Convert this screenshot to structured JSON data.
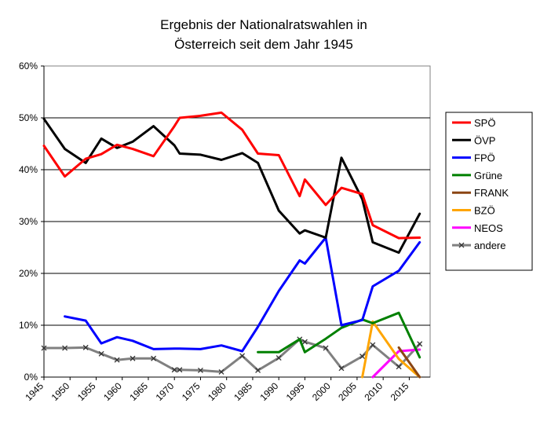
{
  "chart_data": {
    "type": "line",
    "title": [
      "Ergebnis der Nationalratswahlen in",
      "Österreich seit dem Jahr 1945"
    ],
    "xlabel": "",
    "ylabel": "",
    "xlim": [
      1945,
      2019
    ],
    "ylim": [
      0,
      60
    ],
    "x_ticks": [
      "1945",
      "1950",
      "1955",
      "1960",
      "1965",
      "1970",
      "1975",
      "1980",
      "1985",
      "1990",
      "1995",
      "2000",
      "2005",
      "2010",
      "2015"
    ],
    "y_ticks": [
      "0%",
      "10%",
      "20%",
      "30%",
      "40%",
      "50%",
      "60%"
    ],
    "grid": "horizontal",
    "legend_position": "right",
    "series": [
      {
        "name": "SPÖ",
        "color": "#ff0000",
        "markers": false,
        "x": [
          1945,
          1949,
          1953,
          1956,
          1959,
          1962,
          1966,
          1970,
          1971,
          1975,
          1979,
          1983,
          1986,
          1990,
          1994,
          1995,
          1999,
          2002,
          2006,
          2008,
          2013,
          2017
        ],
        "y": [
          44.6,
          38.7,
          42.1,
          43.0,
          44.8,
          44.0,
          42.6,
          48.4,
          50.0,
          50.4,
          51.0,
          47.7,
          43.1,
          42.8,
          34.9,
          38.1,
          33.2,
          36.5,
          35.3,
          29.3,
          26.8,
          26.9
        ]
      },
      {
        "name": "ÖVP",
        "color": "#000000",
        "markers": false,
        "x": [
          1945,
          1949,
          1953,
          1956,
          1959,
          1962,
          1966,
          1970,
          1971,
          1975,
          1979,
          1983,
          1986,
          1990,
          1994,
          1995,
          1999,
          2002,
          2006,
          2008,
          2013,
          2017
        ],
        "y": [
          49.8,
          44.0,
          41.3,
          46.0,
          44.2,
          45.4,
          48.4,
          44.7,
          43.1,
          42.9,
          41.9,
          43.2,
          41.3,
          32.1,
          27.7,
          28.3,
          26.9,
          42.3,
          34.3,
          26.0,
          24.0,
          31.5
        ]
      },
      {
        "name": "FPÖ",
        "color": "#0000ff",
        "markers": false,
        "x": [
          1949,
          1953,
          1956,
          1959,
          1962,
          1966,
          1970,
          1971,
          1975,
          1979,
          1983,
          1986,
          1990,
          1994,
          1995,
          1999,
          2002,
          2006,
          2008,
          2013,
          2017
        ],
        "y": [
          11.7,
          10.9,
          6.5,
          7.7,
          7.0,
          5.4,
          5.5,
          5.5,
          5.4,
          6.1,
          5.0,
          9.7,
          16.6,
          22.5,
          21.9,
          26.9,
          10.0,
          11.0,
          17.5,
          20.5,
          26.0
        ]
      },
      {
        "name": "Grüne",
        "color": "#008000",
        "markers": false,
        "x": [
          1986,
          1990,
          1994,
          1995,
          1999,
          2002,
          2006,
          2008,
          2013,
          2017
        ],
        "y": [
          4.8,
          4.8,
          7.3,
          4.8,
          7.4,
          9.5,
          11.1,
          10.4,
          12.4,
          3.8
        ]
      },
      {
        "name": "FRANK",
        "color": "#8b4513",
        "markers": false,
        "x": [
          2013,
          2017
        ],
        "y": [
          5.7,
          0.0
        ]
      },
      {
        "name": "BZÖ",
        "color": "#ffa500",
        "markers": false,
        "x": [
          2006,
          2008,
          2013,
          2017
        ],
        "y": [
          0.0,
          10.7,
          3.5,
          0.0
        ]
      },
      {
        "name": "NEOS",
        "color": "#ff00ff",
        "markers": false,
        "x": [
          2008,
          2013,
          2017
        ],
        "y": [
          0.0,
          5.0,
          5.3
        ]
      },
      {
        "name": "andere",
        "color": "#808080",
        "markers": true,
        "x": [
          1945,
          1949,
          1953,
          1956,
          1959,
          1962,
          1966,
          1970,
          1971,
          1975,
          1979,
          1983,
          1986,
          1990,
          1994,
          1995,
          1999,
          2002,
          2006,
          2008,
          2013,
          2017
        ],
        "y": [
          5.6,
          5.6,
          5.7,
          4.5,
          3.3,
          3.6,
          3.6,
          1.4,
          1.4,
          1.3,
          1.0,
          4.1,
          1.3,
          3.7,
          7.3,
          6.8,
          5.6,
          1.7,
          4.0,
          6.2,
          2.0,
          6.4
        ]
      }
    ]
  }
}
